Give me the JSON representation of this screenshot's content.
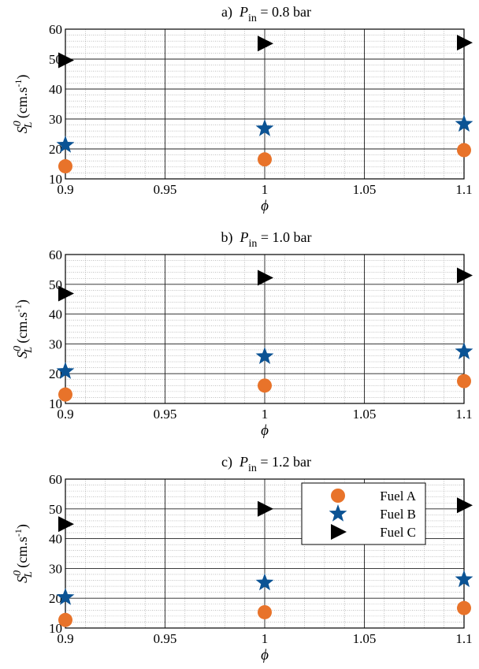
{
  "colors": {
    "fuel_a": "#E8732A",
    "fuel_b": "#0B5394",
    "fuel_c": "#000000",
    "major_grid": "#222222",
    "minor_grid": "#9a9a9a"
  },
  "chart_data": [
    {
      "type": "scatter",
      "title_prefix": "a)",
      "title_symbol": "P",
      "title_sub": "in",
      "title_suffix": " = 0.8 bar",
      "xlabel": "ϕ",
      "ylabel_symbol": "S",
      "ylabel_sup": "0",
      "ylabel_sub": "L",
      "ylabel_unit": " (cm.s",
      "ylabel_unit_sup": "-1",
      "ylabel_unit_end": ")",
      "xlim": [
        0.9,
        1.1
      ],
      "ylim": [
        10,
        60
      ],
      "xticks": [
        "0.9",
        "0.95",
        "1",
        "1.05",
        "1.1"
      ],
      "yticks": [
        "10",
        "20",
        "30",
        "40",
        "50",
        "60"
      ],
      "grid": true,
      "minor_grid": true,
      "series": [
        {
          "name": "Fuel A",
          "marker": "circle",
          "color": "#E8732A",
          "x": [
            0.9,
            1.0,
            1.1
          ],
          "y": [
            14.2,
            16.5,
            19.6
          ]
        },
        {
          "name": "Fuel B",
          "marker": "star",
          "color": "#0B5394",
          "x": [
            0.9,
            1.0,
            1.1
          ],
          "y": [
            21.3,
            26.8,
            28.3
          ]
        },
        {
          "name": "Fuel C",
          "marker": "triangle-right",
          "color": "#000000",
          "x": [
            0.9,
            1.0,
            1.1
          ],
          "y": [
            49.6,
            55.2,
            55.5
          ]
        }
      ]
    },
    {
      "type": "scatter",
      "title_prefix": "b)",
      "title_symbol": "P",
      "title_sub": "in",
      "title_suffix": " = 1.0 bar",
      "xlabel": "ϕ",
      "ylabel_symbol": "S",
      "ylabel_sup": "0",
      "ylabel_sub": "L",
      "ylabel_unit": " (cm.s",
      "ylabel_unit_sup": "-1",
      "ylabel_unit_end": ")",
      "xlim": [
        0.9,
        1.1
      ],
      "ylim": [
        10,
        60
      ],
      "xticks": [
        "0.9",
        "0.95",
        "1",
        "1.05",
        "1.1"
      ],
      "yticks": [
        "10",
        "20",
        "30",
        "40",
        "50",
        "60"
      ],
      "grid": true,
      "minor_grid": true,
      "series": [
        {
          "name": "Fuel A",
          "marker": "circle",
          "color": "#E8732A",
          "x": [
            0.9,
            1.0,
            1.1
          ],
          "y": [
            13.0,
            16.0,
            17.5
          ]
        },
        {
          "name": "Fuel B",
          "marker": "star",
          "color": "#0B5394",
          "x": [
            0.9,
            1.0,
            1.1
          ],
          "y": [
            20.8,
            25.8,
            27.4
          ]
        },
        {
          "name": "Fuel C",
          "marker": "triangle-right",
          "color": "#000000",
          "x": [
            0.9,
            1.0,
            1.1
          ],
          "y": [
            46.9,
            52.2,
            53.0
          ]
        }
      ]
    },
    {
      "type": "scatter",
      "title_prefix": "c)",
      "title_symbol": "P",
      "title_sub": "in",
      "title_suffix": " = 1.2 bar",
      "xlabel": "ϕ",
      "ylabel_symbol": "S",
      "ylabel_sup": "0",
      "ylabel_sub": "L",
      "ylabel_unit": " (cm.s",
      "ylabel_unit_sup": "-1",
      "ylabel_unit_end": ")",
      "xlim": [
        0.9,
        1.1
      ],
      "ylim": [
        10,
        60
      ],
      "xticks": [
        "0.9",
        "0.95",
        "1",
        "1.05",
        "1.1"
      ],
      "yticks": [
        "10",
        "20",
        "30",
        "40",
        "50",
        "60"
      ],
      "grid": true,
      "minor_grid": true,
      "legend": {
        "placement": "top-right",
        "entries": [
          "Fuel A",
          "Fuel B",
          "Fuel C"
        ]
      },
      "series": [
        {
          "name": "Fuel A",
          "marker": "circle",
          "color": "#E8732A",
          "x": [
            0.9,
            1.0,
            1.1
          ],
          "y": [
            12.7,
            15.3,
            16.7
          ]
        },
        {
          "name": "Fuel B",
          "marker": "star",
          "color": "#0B5394",
          "x": [
            0.9,
            1.0,
            1.1
          ],
          "y": [
            20.3,
            25.2,
            26.3
          ]
        },
        {
          "name": "Fuel C",
          "marker": "triangle-right",
          "color": "#000000",
          "x": [
            0.9,
            1.0,
            1.1
          ],
          "y": [
            44.9,
            50.0,
            51.2
          ]
        }
      ]
    }
  ]
}
